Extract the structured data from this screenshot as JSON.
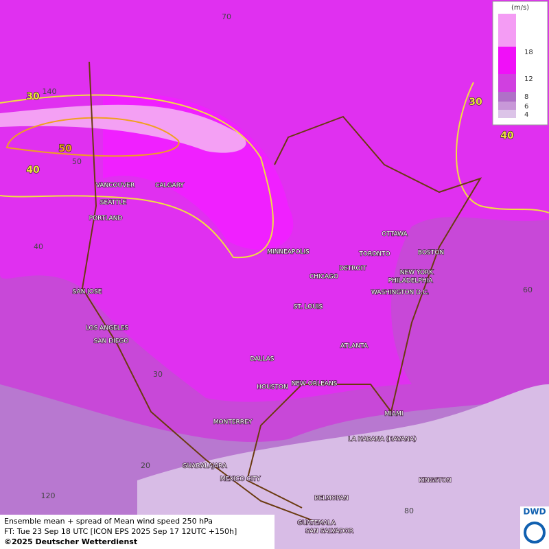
{
  "legend": {
    "unit": "(m/s)",
    "levels": [
      18,
      12,
      8,
      6,
      4
    ]
  },
  "cities": [
    "VANCOUVER",
    "CALGARY",
    "SEATTLE",
    "PORTLAND",
    "MINNEAPOLIS",
    "TORONTO",
    "OTTAWA",
    "BOSTON",
    "DETROIT",
    "NEW YORK",
    "CHICAGO",
    "PHILADELPHIA",
    "WASHINGTON D.C.",
    "SAN JOSE",
    "ST. LOUIS",
    "LOS ANGELES",
    "SAN DIEGO",
    "ATLANTA",
    "DALLAS",
    "HOUSTON",
    "NEW ORLEANS",
    "MIAMI",
    "MONTERREY",
    "LA HABANA (HAVANA)",
    "GUADALAJARA",
    "MEXICO CITY",
    "KINGSTON",
    "BELMOPAN",
    "GUATEMALA",
    "SAN SALVADOR"
  ],
  "graticule_labels": [
    70,
    140,
    50,
    40,
    60,
    30,
    20,
    120,
    80
  ],
  "contour_labels": [
    30,
    50,
    40,
    30,
    40
  ],
  "caption": {
    "line1": "Ensemble mean + spread of Mean wind speed 250 hPa",
    "line2": "FT: Tue 23 Sep 18 UTC [ICON EPS 2025 Sep 17 12UTC +150h]",
    "line3": "©2025 Deutscher Wetterdienst"
  },
  "logo": "DWD"
}
